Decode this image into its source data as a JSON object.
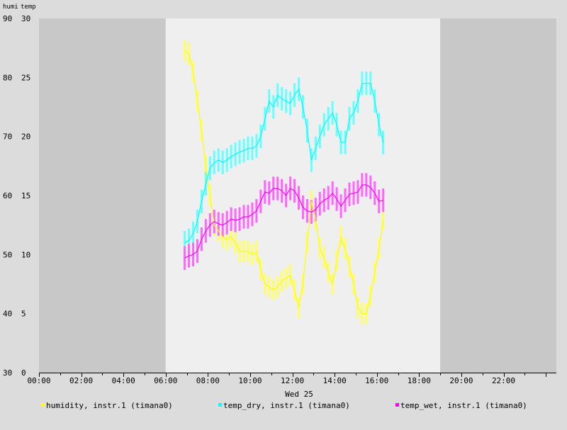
{
  "chart_data": {
    "type": "line",
    "title": "",
    "left_axis_titles": [
      "humi",
      "temp"
    ],
    "xlabel": "Wed 25",
    "x_unit": "hour of day",
    "xlim": [
      0,
      24.5
    ],
    "x_ticks": [
      {
        "value": 0,
        "label": "00:00"
      },
      {
        "value": 2,
        "label": "02:00"
      },
      {
        "value": 4,
        "label": "04:00"
      },
      {
        "value": 6,
        "label": "06:00"
      },
      {
        "value": 8,
        "label": "08:00"
      },
      {
        "value": 10,
        "label": "10:00"
      },
      {
        "value": 12,
        "label": "12:00"
      },
      {
        "value": 14,
        "label": "14:00"
      },
      {
        "value": 16,
        "label": "16:00"
      },
      {
        "value": 18,
        "label": "18:00"
      },
      {
        "value": 20,
        "label": "20:00"
      },
      {
        "value": 22,
        "label": "22:00"
      }
    ],
    "humi_axis": {
      "ylim": [
        30,
        90
      ],
      "ticks": [
        "30",
        "40",
        "50",
        "60",
        "70",
        "80",
        "90"
      ]
    },
    "temp_axis": {
      "ylim": [
        0,
        30
      ],
      "ticks": [
        "0",
        "5",
        "10",
        "15",
        "20",
        "25",
        "30"
      ]
    },
    "daylight_band": {
      "from": 6,
      "to": 19
    },
    "colors": {
      "night": "#c8c8c8",
      "day": "#efefef",
      "humidity": "#ffff00",
      "temp_dry": "#00ffff",
      "temp_wet": "#ff00ff",
      "humidity_bar": "#ffff60",
      "temp_dry_bar": "#66ffff",
      "temp_wet_bar": "#ff66ff"
    },
    "series": [
      {
        "name": "humidity, instr.1 (timana0)",
        "axis": "humi",
        "x": [
          6.9,
          7.1,
          7.3,
          7.5,
          7.7,
          7.9,
          8.1,
          8.3,
          8.5,
          8.7,
          8.9,
          9.1,
          9.3,
          9.5,
          9.7,
          9.9,
          10.1,
          10.3,
          10.5,
          10.7,
          10.9,
          11.1,
          11.3,
          11.5,
          11.7,
          11.9,
          12.1,
          12.3,
          12.5,
          12.7,
          12.9,
          13.1,
          13.3,
          13.5,
          13.7,
          13.9,
          14.1,
          14.3,
          14.5,
          14.7,
          14.9,
          15.1,
          15.3,
          15.5,
          15.7,
          15.9,
          16.1,
          16.3
        ],
        "values": [
          84.5,
          84,
          81,
          76,
          71,
          65,
          60,
          55,
          54,
          53,
          52.5,
          53,
          52,
          50.5,
          50.5,
          50.5,
          50,
          50.5,
          47.5,
          45,
          44.5,
          44,
          44.5,
          45.5,
          46,
          46.5,
          44,
          41,
          45,
          52,
          59,
          56,
          51,
          49.5,
          47,
          45,
          49,
          53,
          51,
          48,
          45,
          41,
          40,
          40,
          43,
          47,
          51,
          56
        ]
      },
      {
        "name": "temp_dry, instr.1 (timana0)",
        "axis": "temp",
        "x": [
          6.9,
          7.1,
          7.3,
          7.5,
          7.7,
          7.9,
          8.1,
          8.3,
          8.5,
          8.7,
          8.9,
          9.1,
          9.3,
          9.5,
          9.7,
          9.9,
          10.1,
          10.3,
          10.5,
          10.7,
          10.9,
          11.1,
          11.3,
          11.5,
          11.7,
          11.9,
          12.1,
          12.3,
          12.5,
          12.7,
          12.9,
          13.1,
          13.3,
          13.5,
          13.7,
          13.9,
          14.1,
          14.3,
          14.5,
          14.7,
          14.9,
          15.1,
          15.3,
          15.5,
          15.7,
          15.9,
          16.1,
          16.3
        ],
        "values": [
          11,
          11.2,
          11.8,
          12.8,
          14.5,
          16,
          17.3,
          17.8,
          18,
          17.8,
          18,
          18.3,
          18.5,
          18.7,
          18.8,
          19,
          19,
          19.2,
          20,
          21.5,
          23,
          22.5,
          23.5,
          23.2,
          23,
          22.8,
          23.5,
          24,
          22.5,
          20.5,
          18,
          19,
          20,
          21,
          21.5,
          22,
          21,
          19.5,
          19.5,
          21.5,
          22,
          23,
          24.5,
          24.5,
          24.5,
          23,
          21,
          19.5
        ]
      },
      {
        "name": "temp_wet, instr.1 (timana0)",
        "axis": "temp",
        "x": [
          6.9,
          7.1,
          7.3,
          7.5,
          7.7,
          7.9,
          8.1,
          8.3,
          8.5,
          8.7,
          8.9,
          9.1,
          9.3,
          9.5,
          9.7,
          9.9,
          10.1,
          10.3,
          10.5,
          10.7,
          10.9,
          11.1,
          11.3,
          11.5,
          11.7,
          11.9,
          12.1,
          12.3,
          12.5,
          12.7,
          12.9,
          13.1,
          13.3,
          13.5,
          13.7,
          13.9,
          14.1,
          14.3,
          14.5,
          14.7,
          14.9,
          15.1,
          15.3,
          15.5,
          15.7,
          15.9,
          16.1,
          16.3
        ],
        "values": [
          9.7,
          9.9,
          10,
          10.3,
          11.3,
          12,
          12.5,
          12.8,
          12.6,
          12.5,
          12.7,
          13,
          12.9,
          13,
          13.2,
          13.2,
          13.4,
          13.7,
          14.5,
          15.3,
          15.2,
          15.6,
          15.6,
          15.4,
          15,
          15.6,
          15.4,
          14.8,
          14,
          13.7,
          13.6,
          13.8,
          14.3,
          14.6,
          14.8,
          15.2,
          14.7,
          14.1,
          14.6,
          15.1,
          15.2,
          15.3,
          15.9,
          15.9,
          15.7,
          15.2,
          14.5,
          14.6
        ]
      }
    ],
    "legend": {
      "placement": "bottom"
    }
  }
}
